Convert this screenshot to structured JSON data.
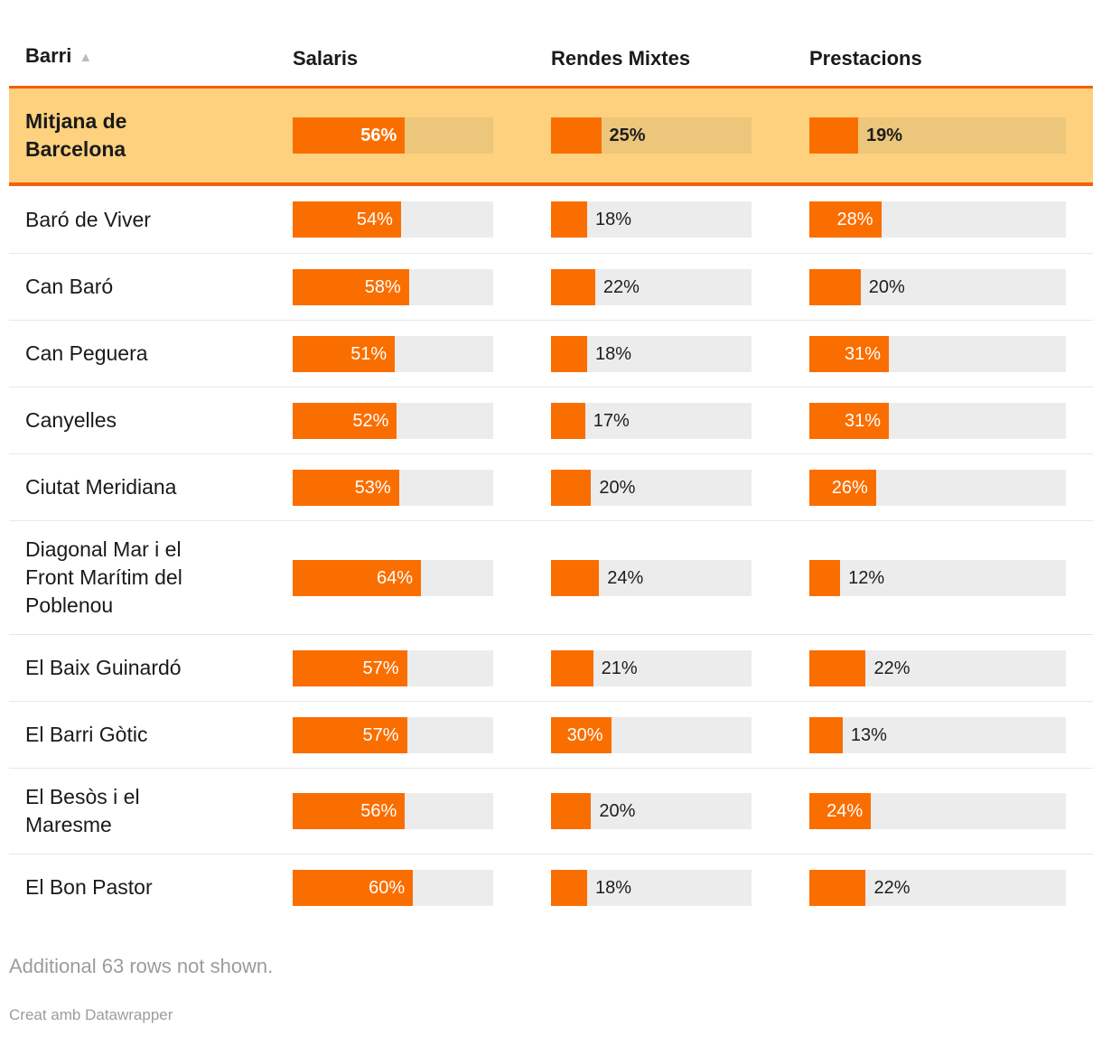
{
  "table": {
    "unit": "%",
    "columns": [
      {
        "label": "Barri",
        "sorted": "ascending"
      },
      {
        "label": "Salaris"
      },
      {
        "label": "Rendes Mixtes"
      },
      {
        "label": "Prestacions"
      }
    ],
    "highlight": {
      "name": "Mitjana de Barcelona",
      "salaris": 56,
      "rendes": 25,
      "prestacions": 19
    },
    "rows": [
      {
        "name": "Baró de Viver",
        "salaris": 54,
        "rendes": 18,
        "prestacions": 28
      },
      {
        "name": "Can Baró",
        "salaris": 58,
        "rendes": 22,
        "prestacions": 20
      },
      {
        "name": "Can Peguera",
        "salaris": 51,
        "rendes": 18,
        "prestacions": 31
      },
      {
        "name": "Canyelles",
        "salaris": 52,
        "rendes": 17,
        "prestacions": 31
      },
      {
        "name": "Ciutat Meridiana",
        "salaris": 53,
        "rendes": 20,
        "prestacions": 26
      },
      {
        "name": "Diagonal Mar i el Front Marítim del Poblenou",
        "salaris": 64,
        "rendes": 24,
        "prestacions": 12
      },
      {
        "name": "El Baix Guinardó",
        "salaris": 57,
        "rendes": 21,
        "prestacions": 22
      },
      {
        "name": "El Barri Gòtic",
        "salaris": 57,
        "rendes": 30,
        "prestacions": 13
      },
      {
        "name": "El Besòs i el Maresme",
        "salaris": 56,
        "rendes": 20,
        "prestacions": 24
      },
      {
        "name": "El Bon Pastor",
        "salaris": 60,
        "rendes": 18,
        "prestacions": 22
      }
    ]
  },
  "icons": {
    "sort_ascending": "▲"
  },
  "footer": {
    "note": "Additional 63 rows not shown.",
    "attribution": "Creat amb Datawrapper"
  },
  "colors": {
    "bar_fill": "#fa6e00",
    "track": "#ececec",
    "highlight_bg": "#fdd17e",
    "highlight_track": "#ecc67a",
    "highlight_border": "#f4610a",
    "label_inside": "#ffffff",
    "label_outside": "#1d1d1d",
    "text": "#1a1a1a",
    "separator": "#e7e7e7",
    "footer_text": "#9c9c9c",
    "sort_arrow": "#bcbcbc"
  },
  "chart_data": {
    "type": "table",
    "title": "",
    "columns": [
      "Barri",
      "Salaris",
      "Rendes Mixtes",
      "Prestacions"
    ],
    "unit": "%",
    "bar_axis_range": [
      0,
      100
    ],
    "sorted_by": "Barri ascending",
    "rows": [
      [
        "Mitjana de Barcelona",
        56,
        25,
        19
      ],
      [
        "Baró de Viver",
        54,
        18,
        28
      ],
      [
        "Can Baró",
        58,
        22,
        20
      ],
      [
        "Can Peguera",
        51,
        18,
        31
      ],
      [
        "Canyelles",
        52,
        17,
        31
      ],
      [
        "Ciutat Meridiana",
        53,
        20,
        26
      ],
      [
        "Diagonal Mar i el Front Marítim del Poblenou",
        64,
        24,
        12
      ],
      [
        "El Baix Guinardó",
        57,
        21,
        22
      ],
      [
        "El Barri Gòtic",
        57,
        30,
        13
      ],
      [
        "El Besòs i el Maresme",
        56,
        20,
        24
      ],
      [
        "El Bon Pastor",
        60,
        18,
        22
      ]
    ],
    "note": "Additional 63 rows not shown."
  }
}
